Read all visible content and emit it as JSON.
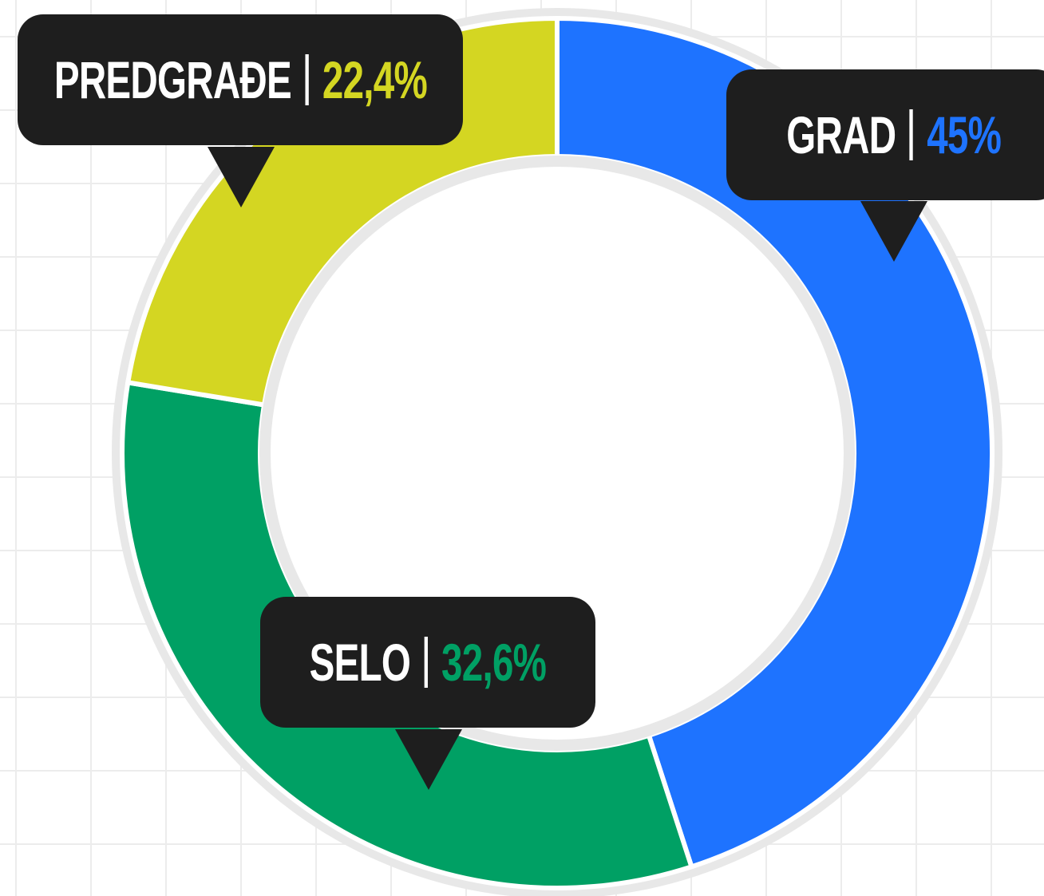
{
  "chart_data": {
    "type": "pie",
    "categories": [
      "GRAD",
      "SELO",
      "PREDGRAĐE"
    ],
    "values": [
      45,
      32.6,
      22.4
    ],
    "value_labels": [
      "45%",
      "32,6%",
      "22,4%"
    ],
    "colors": [
      "#1e73ff",
      "#00a064",
      "#d4d622"
    ]
  }
}
